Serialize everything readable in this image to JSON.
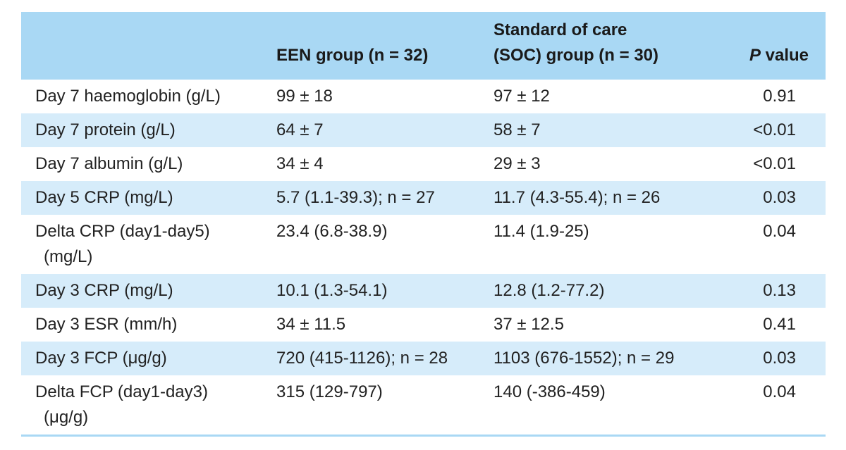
{
  "table": {
    "headers": {
      "col1": "",
      "col2": "EEN group (n = 32)",
      "col3_line1": "Standard of care",
      "col3_line2": "(SOC) group (n = 30)",
      "col4_italic": "P",
      "col4_rest": " value"
    },
    "rows": [
      {
        "label": "Day 7 haemoglobin (g/L)",
        "label2": "",
        "een": "99 ± 18",
        "soc": "97 ± 12",
        "p": "0.91"
      },
      {
        "label": "Day 7 protein (g/L)",
        "label2": "",
        "een": "64 ± 7",
        "soc": "58 ± 7",
        "p": "<0.01"
      },
      {
        "label": "Day 7 albumin (g/L)",
        "label2": "",
        "een": "34 ± 4",
        "soc": "29 ± 3",
        "p": "<0.01"
      },
      {
        "label": "Day 5 CRP (mg/L)",
        "label2": "",
        "een": "5.7 (1.1-39.3); n = 27",
        "soc": "11.7 (4.3-55.4); n = 26",
        "p": "0.03"
      },
      {
        "label": "Delta CRP (day1-day5)",
        "label2": "(mg/L)",
        "een": "23.4 (6.8-38.9)",
        "soc": "11.4 (1.9-25)",
        "p": "0.04"
      },
      {
        "label": "Day 3 CRP (mg/L)",
        "label2": "",
        "een": "10.1 (1.3-54.1)",
        "soc": "12.8 (1.2-77.2)",
        "p": "0.13"
      },
      {
        "label": "Day 3 ESR (mm/h)",
        "label2": "",
        "een": "34 ± 11.5",
        "soc": "37 ± 12.5",
        "p": "0.41"
      },
      {
        "label": "Day 3 FCP (μg/g)",
        "label2": "",
        "een": "720 (415-1126); n = 28",
        "soc": "1103 (676-1552); n = 29",
        "p": "0.03"
      },
      {
        "label": "Delta FCP (day1-day3)",
        "label2": "(μg/g)",
        "een": "315 (129-797)",
        "soc": "140 (-386-459)",
        "p": "0.04"
      }
    ]
  },
  "colors": {
    "header_bg": "#a9d8f4",
    "stripe_bg": "#d6ecfa",
    "text": "#222222"
  }
}
